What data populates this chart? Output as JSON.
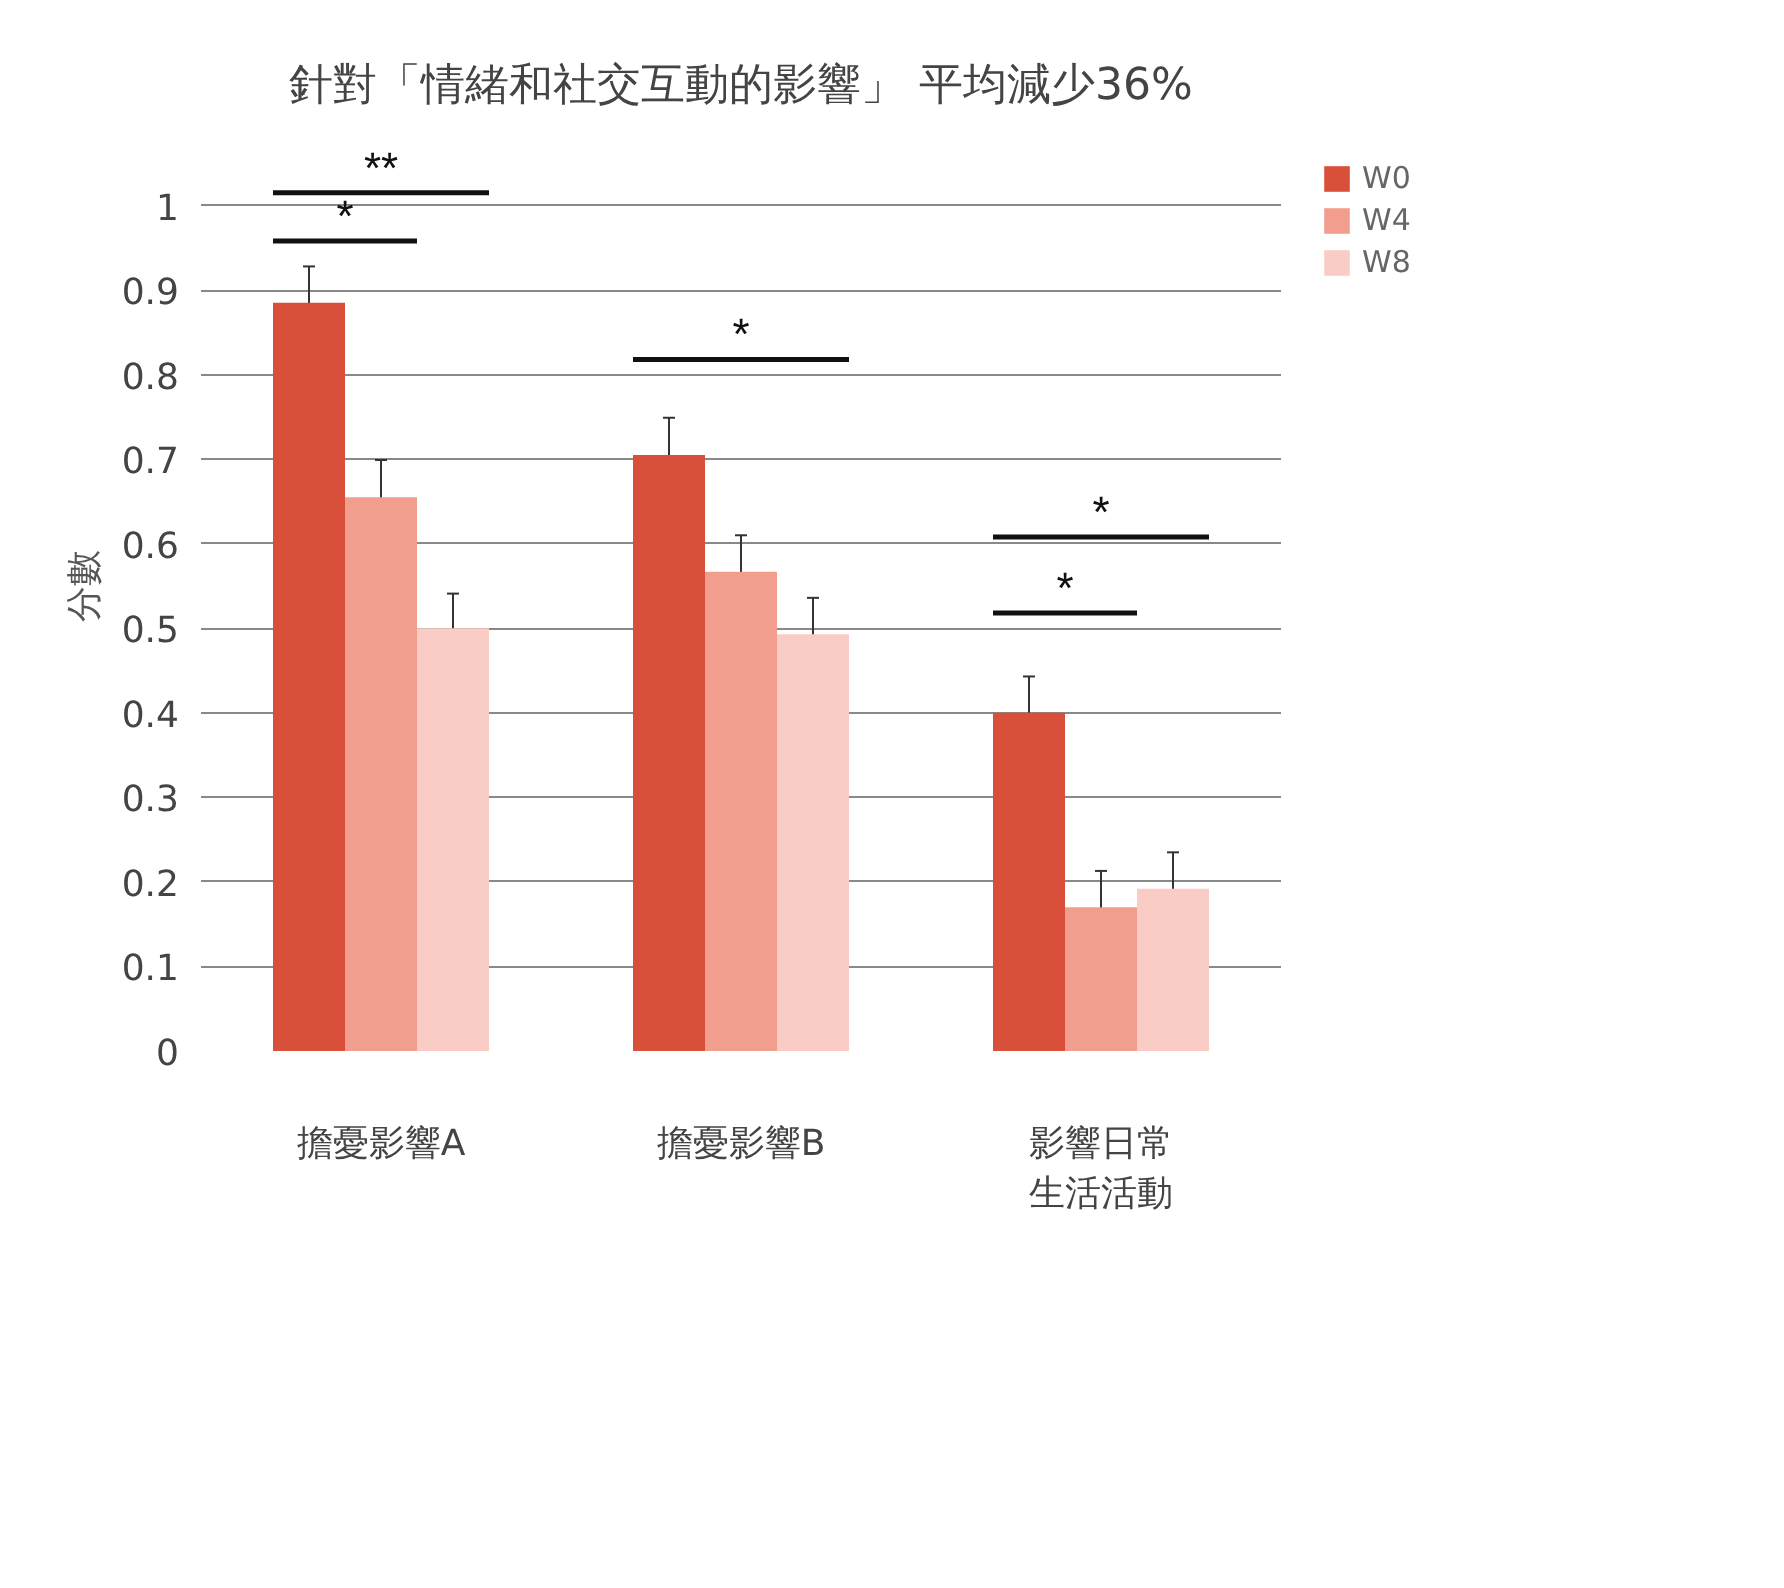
{
  "chart_data": {
    "type": "bar",
    "title": "針對「情緒和社交互動的影響」 平均減少36%",
    "ylabel": "分數",
    "categories": [
      "擔憂影響A",
      "擔憂影響B",
      "影響日常生活活動"
    ],
    "series": [
      {
        "name": "W0",
        "color": "#d9503a",
        "values": [
          0.885,
          0.705,
          0.4
        ],
        "errors": [
          0.043,
          0.044,
          0.043
        ]
      },
      {
        "name": "W4",
        "color": "#f29e8e",
        "values": [
          0.655,
          0.567,
          0.17
        ],
        "errors": [
          0.044,
          0.043,
          0.043
        ]
      },
      {
        "name": "W8",
        "color": "#f9cdc5",
        "values": [
          0.5,
          0.493,
          0.192
        ],
        "errors": [
          0.041,
          0.043,
          0.043
        ]
      }
    ],
    "ylim": [
      0,
      1
    ],
    "yticks": [
      0,
      {
        "value": 0.1,
        "label": "0.1"
      },
      {
        "value": 0.2,
        "label": "0.2"
      },
      {
        "value": 0.3,
        "label": "0.3"
      },
      {
        "value": 0.4,
        "label": "0.4"
      },
      {
        "value": 0.5,
        "label": "0.5"
      },
      {
        "value": 0.6,
        "label": "0.6"
      },
      {
        "value": 0.7,
        "label": "0.7"
      },
      {
        "value": 0.8,
        "label": "0.8"
      },
      {
        "value": 0.9,
        "label": "0.9"
      },
      1
    ],
    "grid": "y",
    "legend": "top right",
    "annotations": [
      "**",
      "*",
      "*",
      "*",
      "*"
    ]
  }
}
